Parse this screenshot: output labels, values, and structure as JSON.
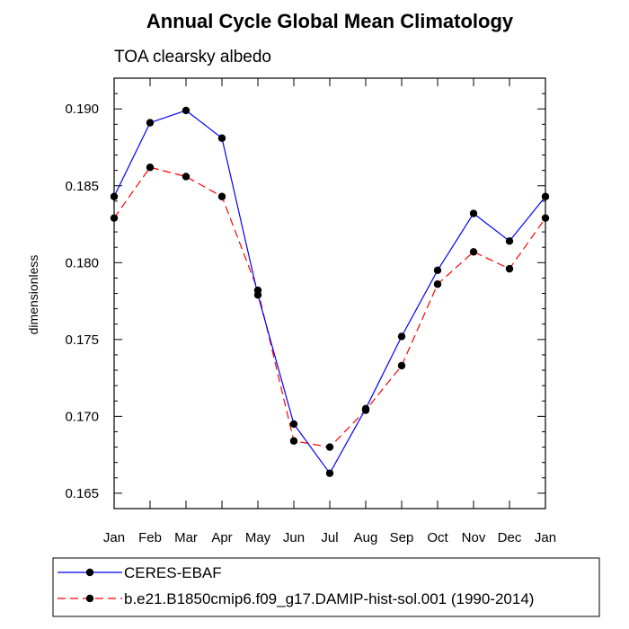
{
  "chart_data": {
    "type": "line",
    "title": "Annual Cycle Global Mean Climatology",
    "subtitle": "TOA clearsky albedo",
    "xlabel": "",
    "ylabel": "dimensionless",
    "categories": [
      "Jan",
      "Feb",
      "Mar",
      "Apr",
      "May",
      "Jun",
      "Jul",
      "Aug",
      "Sep",
      "Oct",
      "Nov",
      "Dec",
      "Jan"
    ],
    "ylim": [
      0.164,
      0.192
    ],
    "yticks": [
      0.165,
      0.17,
      0.175,
      0.18,
      0.185,
      0.19
    ],
    "ytick_labels": [
      "0.165",
      "0.170",
      "0.175",
      "0.180",
      "0.185",
      "0.190"
    ],
    "grid": false,
    "legend_position": "bottom",
    "series": [
      {
        "name": "CERES-EBAF",
        "color": "#0000ff",
        "line_style": "solid",
        "values": [
          0.1843,
          0.1891,
          0.1899,
          0.1881,
          0.1779,
          0.1695,
          0.1663,
          0.1705,
          0.1752,
          0.1795,
          0.1832,
          0.1814,
          0.1843
        ]
      },
      {
        "name": "b.e21.B1850cmip6.f09_g17.DAMIP-hist-sol.001 (1990-2014)",
        "color": "#ff0000",
        "line_style": "dashed",
        "values": [
          0.1829,
          0.1862,
          0.1856,
          0.1843,
          0.1782,
          0.1684,
          0.168,
          0.1704,
          0.1733,
          0.1786,
          0.1807,
          0.1796,
          0.1829
        ]
      }
    ]
  }
}
